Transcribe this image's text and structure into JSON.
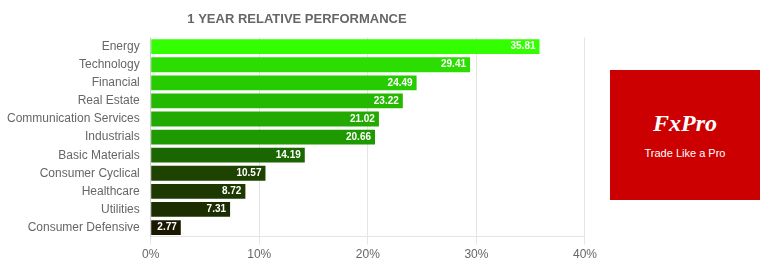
{
  "chart_data": {
    "type": "bar",
    "orientation": "horizontal",
    "title": "1 YEAR RELATIVE PERFORMANCE",
    "categories": [
      "Consumer Defensive",
      "Utilities",
      "Healthcare",
      "Consumer Cyclical",
      "Basic Materials",
      "Industrials",
      "Communication Services",
      "Real Estate",
      "Financial",
      "Technology",
      "Energy"
    ],
    "values": [
      2.77,
      7.31,
      8.72,
      10.57,
      14.19,
      20.66,
      21.02,
      23.22,
      24.49,
      29.41,
      35.81
    ],
    "colors": [
      "#1a1800",
      "#1c2e00",
      "#1d3800",
      "#1e4200",
      "#1a6600",
      "#1f9900",
      "#22aa00",
      "#24b800",
      "#26cc00",
      "#2bdd00",
      "#33ff00"
    ],
    "xlim": [
      0,
      40
    ],
    "xticks": [
      {
        "value": 0,
        "label": "0%"
      },
      {
        "value": 10,
        "label": "10%"
      },
      {
        "value": 20,
        "label": "20%"
      },
      {
        "value": 30,
        "label": "30%"
      },
      {
        "value": 40,
        "label": "40%"
      }
    ],
    "grid": true,
    "data_labels": true,
    "annotations": [
      "FxPro",
      "Trade Like a Pro"
    ]
  }
}
